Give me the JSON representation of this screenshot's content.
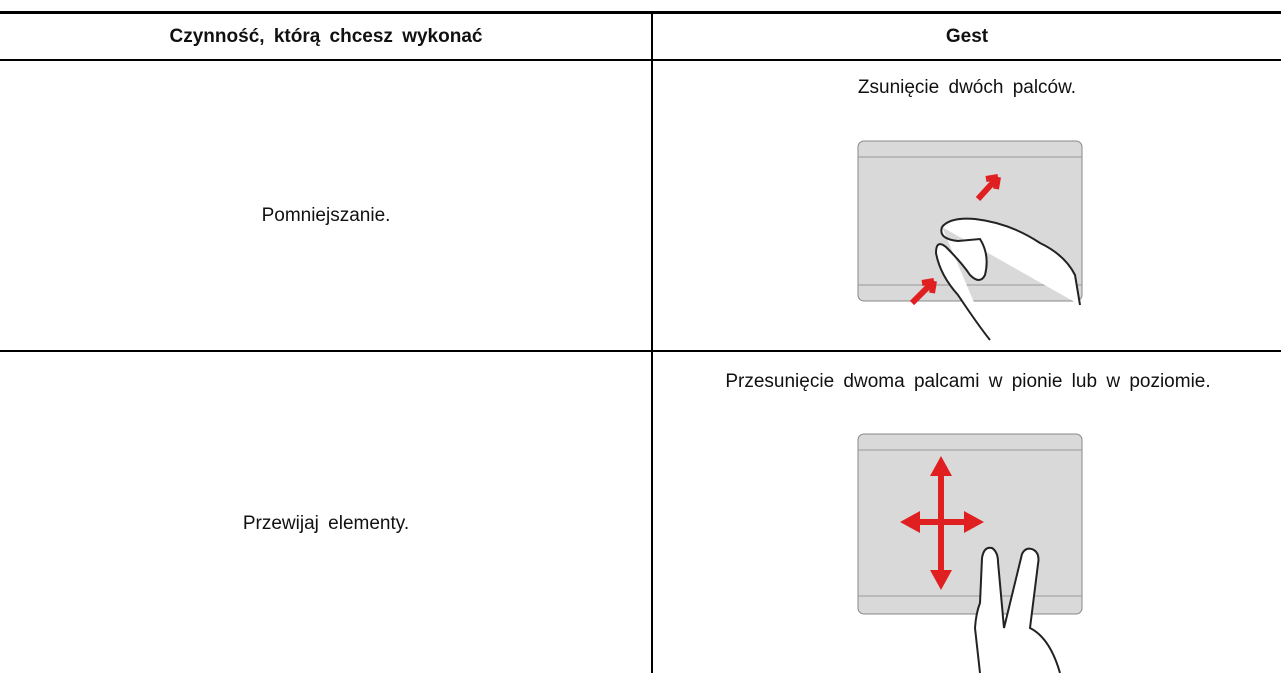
{
  "table": {
    "header": [
      "Czynność, którą chcesz wykonać",
      "Gest"
    ],
    "rows": [
      [
        "Pomniejszanie.",
        "Zsunięcie dwóch palców."
      ],
      [
        "Przewijaj elementy.",
        "Przesunięcie dwoma palcami w pionie lub w poziomie."
      ]
    ]
  }
}
